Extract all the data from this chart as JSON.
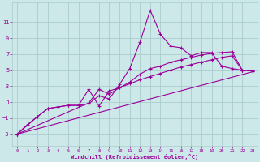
{
  "xlabel": "Windchill (Refroidissement éolien,°C)",
  "bg_color": "#cce8e8",
  "grid_color": "#aacccc",
  "line_color": "#990099",
  "x_ticks": [
    0,
    1,
    2,
    3,
    4,
    5,
    6,
    7,
    8,
    9,
    10,
    11,
    12,
    13,
    14,
    15,
    16,
    17,
    18,
    19,
    20,
    21,
    22,
    23
  ],
  "y_ticks": [
    -3,
    -1,
    1,
    3,
    5,
    7,
    9,
    11
  ],
  "xlim": [
    -0.5,
    23.5
  ],
  "ylim": [
    -4.5,
    13.5
  ],
  "series1_x": [
    0,
    1,
    2,
    3,
    4,
    5,
    6,
    7,
    8,
    9,
    10,
    11,
    12,
    13,
    14,
    15,
    16,
    17,
    18,
    19,
    20,
    21,
    22,
    23
  ],
  "series1_y": [
    -3.0,
    -1.8,
    -0.8,
    0.2,
    0.4,
    0.6,
    0.6,
    0.8,
    1.8,
    1.4,
    3.2,
    5.2,
    8.5,
    12.5,
    9.5,
    8.0,
    7.8,
    6.8,
    7.2,
    7.2,
    5.5,
    5.2,
    5.0,
    5.0
  ],
  "series2_x": [
    0,
    2,
    3,
    4,
    5,
    6,
    7,
    8,
    9,
    10,
    11,
    12,
    13,
    14,
    15,
    16,
    17,
    18,
    19,
    20,
    21,
    22,
    23
  ],
  "series2_y": [
    -3.0,
    -0.8,
    0.2,
    0.4,
    0.6,
    0.6,
    2.6,
    0.5,
    2.4,
    2.8,
    3.5,
    4.5,
    5.2,
    5.5,
    6.0,
    6.3,
    6.6,
    6.9,
    7.1,
    7.2,
    7.3,
    5.0,
    4.9
  ],
  "series3_x": [
    0,
    7,
    8,
    9,
    10,
    11,
    12,
    13,
    14,
    15,
    16,
    17,
    18,
    19,
    20,
    21,
    22,
    23
  ],
  "series3_y": [
    -3.0,
    0.9,
    2.6,
    2.0,
    2.8,
    3.3,
    3.8,
    4.2,
    4.6,
    5.0,
    5.4,
    5.7,
    6.0,
    6.3,
    6.6,
    6.8,
    5.0,
    4.9
  ],
  "series4_x": [
    0,
    23
  ],
  "series4_y": [
    -3.0,
    4.8
  ]
}
